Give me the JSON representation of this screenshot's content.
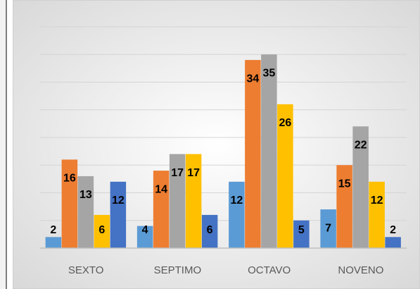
{
  "chart_data": {
    "type": "bar",
    "categories": [
      "SEXTO",
      "SEPTIMO",
      "OCTAVO",
      "NOVENO"
    ],
    "series": [
      {
        "color": "#5b9bd5",
        "values": [
          2,
          4,
          12,
          7
        ]
      },
      {
        "color": "#ed7d31",
        "values": [
          16,
          14,
          34,
          15
        ]
      },
      {
        "color": "#a5a5a5",
        "values": [
          13,
          17,
          35,
          22
        ]
      },
      {
        "color": "#ffc000",
        "values": [
          6,
          17,
          26,
          12
        ]
      },
      {
        "color": "#4472c4",
        "values": [
          12,
          6,
          5,
          2
        ]
      }
    ],
    "ylim": [
      0,
      40
    ],
    "yticks": [
      0,
      5,
      10,
      15,
      20,
      25,
      30,
      35,
      40
    ],
    "grid": true
  }
}
